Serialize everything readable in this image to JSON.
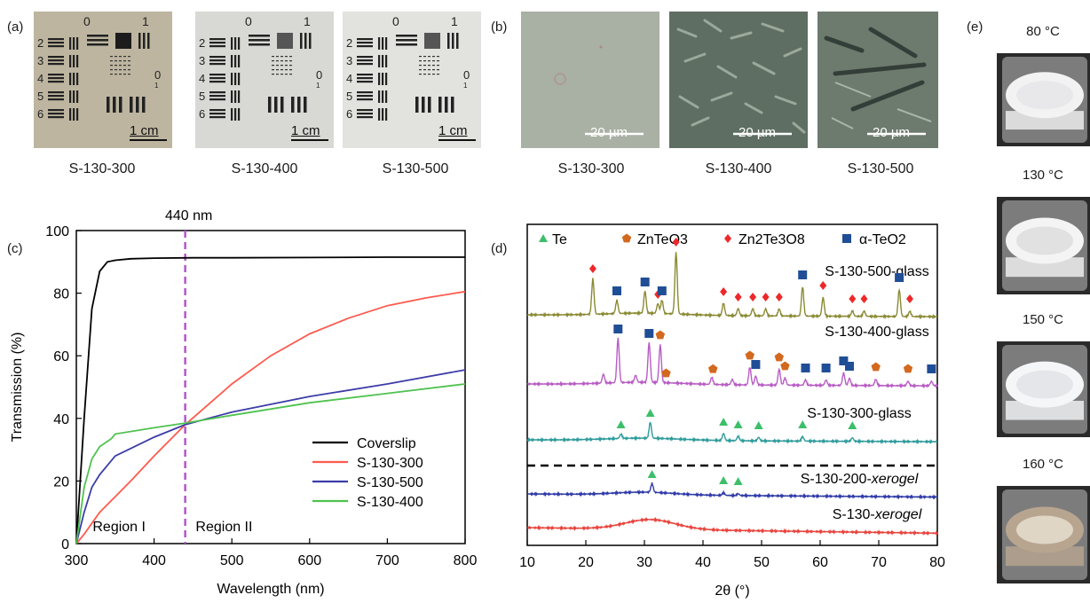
{
  "panel_a": {
    "letter": "(a)",
    "scale_label": "1 cm",
    "target_digits": {
      "top0": "0",
      "top1": "1",
      "rows": [
        "2",
        "3",
        "4",
        "5",
        "6"
      ],
      "side0": "0",
      "side1": "1"
    },
    "captions": [
      "S-130-300",
      "S-130-400",
      "S-130-500"
    ],
    "tints": [
      "#bdb5a0",
      "#d8d8d4",
      "#e2e2df"
    ]
  },
  "panel_b": {
    "letter": "(b)",
    "scale_label": "20 µm",
    "captions": [
      "S-130-300",
      "S-130-400",
      "S-130-500"
    ]
  },
  "panel_e": {
    "letter": "(e)",
    "temps": [
      "80 °C",
      "130 °C",
      "150 °C",
      "160 °C"
    ]
  },
  "panel_c": {
    "letter": "(c)",
    "annotation": "440 nm",
    "region1": "Region I",
    "region2": "Region II"
  },
  "panel_d": {
    "letter": "(d)",
    "legend": {
      "te": "Te",
      "znteo3": "ZnTeO3",
      "zn2te3o8": "Zn2Te3O8",
      "ateo2": "α-TeO2"
    },
    "curve_labels": [
      "S-130-500-glass",
      "S-130-400-glass",
      "S-130-300-glass",
      "S-130-200-xerogel",
      "S-130-xerogel"
    ]
  },
  "chart_data": [
    {
      "type": "line",
      "xlabel": "Wavelength (nm)",
      "ylabel": "Transmission (%)",
      "xlim": [
        300,
        800
      ],
      "ylim": [
        0,
        100
      ],
      "xticks": [
        300,
        400,
        500,
        600,
        700,
        800
      ],
      "yticks": [
        0,
        20,
        40,
        60,
        80,
        100
      ],
      "vline_x": 440,
      "legend_position": "lower-right",
      "series": [
        {
          "name": "Coverslip",
          "color": "#000000",
          "x": [
            300,
            310,
            320,
            330,
            340,
            350,
            370,
            400,
            450,
            500,
            600,
            700,
            800
          ],
          "y": [
            0,
            40,
            75,
            87,
            90,
            90.5,
            91,
            91.2,
            91.3,
            91.3,
            91.4,
            91.5,
            91.5
          ]
        },
        {
          "name": "S-130-300",
          "color": "#ff5a4e",
          "x": [
            300,
            310,
            330,
            350,
            370,
            400,
            440,
            500,
            550,
            600,
            650,
            700,
            750,
            800
          ],
          "y": [
            0,
            3,
            10,
            15,
            20,
            28,
            38,
            51,
            60,
            67,
            72,
            76,
            78.5,
            80.5
          ]
        },
        {
          "name": "S-130-500",
          "color": "#3c3ca8",
          "x": [
            300,
            310,
            320,
            330,
            350,
            400,
            440,
            500,
            600,
            700,
            800
          ],
          "y": [
            0,
            10,
            18,
            22,
            28,
            34,
            38,
            42,
            47,
            51,
            55.5
          ]
        },
        {
          "name": "S-130-400",
          "color": "#4fc24f",
          "x": [
            300,
            310,
            320,
            330,
            345,
            350,
            400,
            440,
            500,
            600,
            700,
            800
          ],
          "y": [
            0,
            18,
            27,
            31,
            33.5,
            35,
            37,
            38.5,
            41,
            45,
            48,
            51
          ]
        }
      ]
    },
    {
      "type": "line",
      "xlabel": "2θ (°)",
      "ylabel": "",
      "xlim": [
        10,
        80
      ],
      "xticks": [
        10,
        20,
        30,
        40,
        50,
        60,
        70,
        80
      ],
      "series": [
        {
          "name": "S-130-500-glass",
          "color": "#8a8a34",
          "peaks": [
            [
              21.2,
              40
            ],
            [
              25.3,
              15
            ],
            [
              30.1,
              25
            ],
            [
              32.3,
              11
            ],
            [
              33,
              15
            ],
            [
              35.4,
              70
            ],
            [
              43.5,
              14
            ],
            [
              46,
              8
            ],
            [
              48.5,
              8
            ],
            [
              50.7,
              8
            ],
            [
              53,
              8
            ],
            [
              57,
              33
            ],
            [
              60.5,
              21
            ],
            [
              65.5,
              6
            ],
            [
              67.5,
              6
            ],
            [
              73.5,
              30
            ],
            [
              75.3,
              6
            ]
          ]
        },
        {
          "name": "S-130-400-glass",
          "color": "#b85cc4",
          "peaks": [
            [
              23,
              10
            ],
            [
              25.5,
              50
            ],
            [
              28.5,
              8
            ],
            [
              30.8,
              45
            ],
            [
              32.7,
              43
            ],
            [
              41.5,
              8
            ],
            [
              45,
              6
            ],
            [
              48,
              20
            ],
            [
              49,
              10
            ],
            [
              53,
              18
            ],
            [
              54,
              8
            ],
            [
              57.5,
              6
            ],
            [
              61,
              6
            ],
            [
              64,
              14
            ],
            [
              65,
              8
            ],
            [
              69.5,
              7
            ],
            [
              75,
              5
            ],
            [
              79,
              5
            ]
          ]
        },
        {
          "name": "S-130-300-glass",
          "color": "#2e9b9b",
          "peaks": [
            [
              26,
              5
            ],
            [
              31,
              18
            ],
            [
              43.5,
              8
            ],
            [
              46,
              5
            ],
            [
              49.5,
              4
            ],
            [
              57,
              5
            ],
            [
              65.5,
              4
            ]
          ]
        },
        {
          "name": "S-130-200-xerogel",
          "color": "#2f3aa8",
          "peaks": [
            [
              31.3,
              10
            ],
            [
              43.5,
              3
            ],
            [
              46,
              2
            ]
          ]
        },
        {
          "name": "S-130-xerogel",
          "color": "#e8433c",
          "peaks": []
        }
      ]
    }
  ],
  "colors": {
    "te": "#3dbf6a",
    "znteo3": "#d2691e",
    "zn2te3o8": "#ee2828",
    "ateo2": "#1f4e96",
    "vline": "#b455c8"
  }
}
